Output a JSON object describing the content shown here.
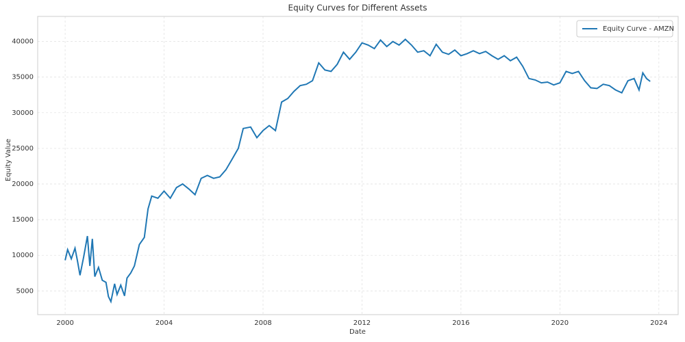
{
  "chart_data": {
    "type": "line",
    "title": "Equity Curves for Different Assets",
    "x_label": "Date",
    "y_label": "Equity Value",
    "x": [
      2000.0,
      2000.1,
      2000.25,
      2000.4,
      2000.5,
      2000.6,
      2000.75,
      2000.9,
      2001.0,
      2001.1,
      2001.2,
      2001.35,
      2001.5,
      2001.65,
      2001.75,
      2001.85,
      2002.0,
      2002.1,
      2002.25,
      2002.4,
      2002.5,
      2002.65,
      2002.8,
      2003.0,
      2003.2,
      2003.35,
      2003.5,
      2003.75,
      2004.0,
      2004.25,
      2004.5,
      2004.75,
      2005.0,
      2005.25,
      2005.5,
      2005.75,
      2006.0,
      2006.25,
      2006.5,
      2006.75,
      2007.0,
      2007.2,
      2007.5,
      2007.75,
      2008.0,
      2008.25,
      2008.5,
      2008.75,
      2009.0,
      2009.25,
      2009.5,
      2009.75,
      2010.0,
      2010.25,
      2010.5,
      2010.75,
      2011.0,
      2011.25,
      2011.5,
      2011.75,
      2012.0,
      2012.25,
      2012.5,
      2012.75,
      2013.0,
      2013.25,
      2013.5,
      2013.75,
      2014.0,
      2014.25,
      2014.5,
      2014.75,
      2015.0,
      2015.25,
      2015.5,
      2015.75,
      2016.0,
      2016.25,
      2016.5,
      2016.75,
      2017.0,
      2017.25,
      2017.5,
      2017.75,
      2018.0,
      2018.25,
      2018.5,
      2018.75,
      2019.0,
      2019.25,
      2019.5,
      2019.75,
      2020.0,
      2020.25,
      2020.5,
      2020.75,
      2021.0,
      2021.25,
      2021.5,
      2021.75,
      2022.0,
      2022.25,
      2022.5,
      2022.75,
      2023.0,
      2023.2,
      2023.35,
      2023.5,
      2023.65
    ],
    "series": [
      {
        "name": "Equity Curve - AMZN",
        "color": "#1f77b4",
        "values": [
          9300,
          10800,
          9500,
          11000,
          9200,
          7200,
          9800,
          12700,
          8500,
          12300,
          7000,
          8300,
          6500,
          6200,
          4200,
          3500,
          6000,
          4500,
          5800,
          4300,
          6800,
          7500,
          8500,
          11500,
          12500,
          16500,
          18300,
          18000,
          19000,
          18000,
          19500,
          20000,
          19300,
          18500,
          20800,
          21200,
          20800,
          21000,
          22000,
          23500,
          25000,
          27800,
          28000,
          26500,
          27500,
          28200,
          27500,
          31500,
          32000,
          33000,
          33800,
          34000,
          34500,
          37000,
          36000,
          35800,
          36800,
          38500,
          37500,
          38500,
          39800,
          39500,
          39000,
          40200,
          39300,
          40000,
          39500,
          40300,
          39500,
          38500,
          38700,
          38000,
          39600,
          38500,
          38200,
          38800,
          38000,
          38300,
          38700,
          38300,
          38600,
          38000,
          37500,
          38000,
          37300,
          37800,
          36500,
          34800,
          34600,
          34200,
          34300,
          33900,
          34200,
          35800,
          35500,
          35800,
          34500,
          33500,
          33400,
          34000,
          33800,
          33200,
          32800,
          34500,
          34800,
          33200,
          35600,
          34800,
          34400
        ]
      }
    ],
    "xlim": [
      1998.89,
      2024.78
    ],
    "ylim": [
      1667,
      43519
    ],
    "xticks": [
      2000,
      2004,
      2008,
      2012,
      2016,
      2020,
      2024
    ],
    "yticks": [
      5000,
      10000,
      15000,
      20000,
      25000,
      30000,
      35000,
      40000
    ],
    "grid": true,
    "legend": "upper-right"
  }
}
